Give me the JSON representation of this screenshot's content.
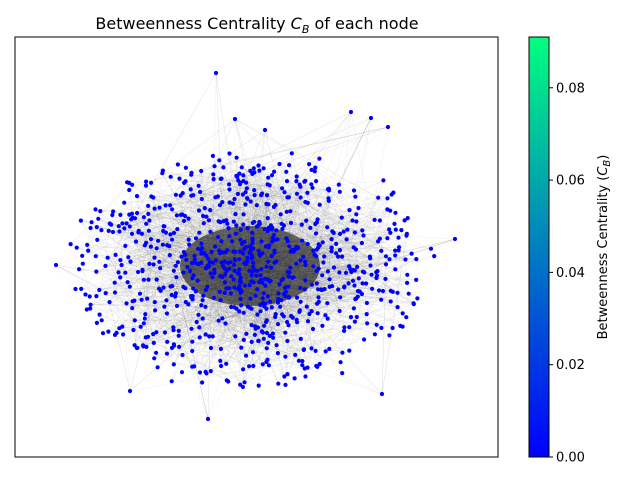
{
  "chart_data": {
    "type": "scatter",
    "title": "Betweenness Centrality C_B of each node",
    "title_parts": {
      "prefix": "Betweenness Centrality ",
      "symbol": "C",
      "subscript": "B",
      "suffix": " of each node"
    },
    "subtype": "network-graph",
    "node_color": "#0000ff",
    "edge_color": "#222222",
    "colorbar": {
      "label": "Betweenness Centrality (C_B)",
      "label_parts": {
        "prefix": "Betweenness Centrality (",
        "symbol": "C",
        "subscript": "B",
        "suffix": ")"
      },
      "range": [
        0.0,
        0.091
      ],
      "ticks": [
        {
          "value": 0.0,
          "label": "0.00"
        },
        {
          "value": 0.02,
          "label": "0.02"
        },
        {
          "value": 0.04,
          "label": "0.04"
        },
        {
          "value": 0.06,
          "label": "0.06"
        },
        {
          "value": 0.08,
          "label": "0.08"
        }
      ],
      "colormap": [
        "#0000ff",
        "#00ff80"
      ]
    },
    "grid": false,
    "axes_visible": false
  }
}
